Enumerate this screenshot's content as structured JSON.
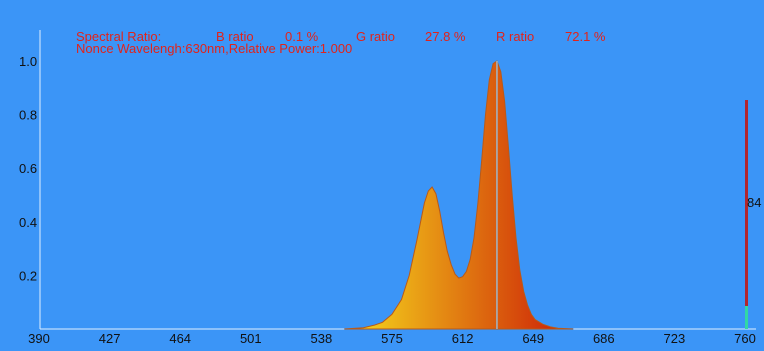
{
  "header": {
    "spectral_ratio_label": "Spectral Ratio:",
    "b_label": "B ratio",
    "b_value": "0.1 %",
    "g_label": "G ratio",
    "g_value": "27.8 %",
    "r_label": "R ratio",
    "r_value": "72.1 %",
    "info_line": "Nonce Wavelengh:630nm,Relative Power:1.000"
  },
  "colors": {
    "background": "#3b95f7",
    "text_red": "#e2231a",
    "axis_text": "#111111",
    "spectrum_left": "#f2c81a",
    "spectrum_right": "#cf2a08",
    "spectrum_edge": "#b85a1a",
    "marker_line": "#9fb7c9",
    "side_bar_red": "#b2262e",
    "side_bar_green": "#32d8a4"
  },
  "side_gauge": {
    "value_label": "84",
    "level": 0.84
  },
  "chart_data": {
    "type": "area",
    "title": "",
    "xlabel": "",
    "ylabel": "",
    "x_ticks": [
      390,
      427,
      464,
      501,
      538,
      575,
      612,
      649,
      686,
      723,
      760
    ],
    "y_ticks": [
      0.2,
      0.4,
      0.6,
      0.8,
      1.0
    ],
    "y_tick_labels": [
      "0.2",
      "0.4",
      "0.6",
      "0.8",
      "1.0"
    ],
    "xlim": [
      390,
      760
    ],
    "ylim": [
      0,
      1.0
    ],
    "grid": false,
    "marker_wavelength": 630,
    "series": [
      {
        "x": [
          550,
          560,
          566,
          570,
          575,
          580,
          584,
          588,
          592,
          594,
          596,
          598,
          600,
          602,
          604,
          606,
          608,
          610,
          612,
          614,
          616,
          618,
          620,
          622,
          624,
          626,
          628,
          630,
          632,
          634,
          636,
          638,
          640,
          642,
          644,
          646,
          648,
          650,
          654,
          658,
          662,
          670
        ],
        "y": [
          0.0,
          0.005,
          0.015,
          0.025,
          0.055,
          0.11,
          0.2,
          0.33,
          0.47,
          0.515,
          0.53,
          0.505,
          0.44,
          0.36,
          0.29,
          0.24,
          0.205,
          0.19,
          0.195,
          0.215,
          0.26,
          0.34,
          0.47,
          0.63,
          0.8,
          0.93,
          0.99,
          1.0,
          0.96,
          0.85,
          0.68,
          0.5,
          0.34,
          0.22,
          0.14,
          0.09,
          0.055,
          0.035,
          0.018,
          0.008,
          0.003,
          0.0
        ]
      }
    ]
  }
}
